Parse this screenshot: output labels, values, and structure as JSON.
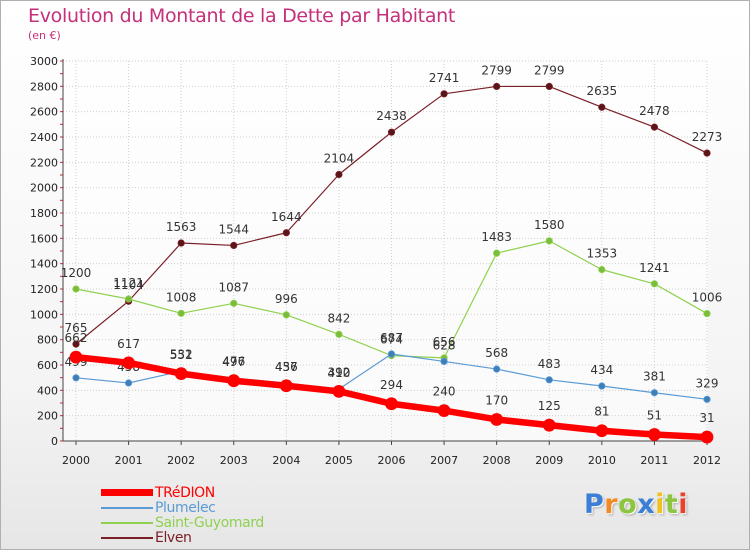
{
  "chart_data": {
    "type": "line",
    "title": "Evolution du Montant de la Dette par Habitant",
    "subtitle": "(en €)",
    "x": [
      "2000",
      "2001",
      "2002",
      "2003",
      "2004",
      "2005",
      "2006",
      "2007",
      "2008",
      "2009",
      "2010",
      "2011",
      "2012"
    ],
    "y_ticks": [
      "0",
      "200",
      "400",
      "600",
      "800",
      "1000",
      "1200",
      "1400",
      "1600",
      "1800",
      "2000",
      "2200",
      "2400",
      "2600",
      "2800",
      "3000"
    ],
    "ylim": [
      0,
      3000
    ],
    "grid": true,
    "legend_position": "bottom-left",
    "series": [
      {
        "name": "Elven",
        "color": "#7a1f27",
        "values": [
          765,
          1104,
          1563,
          1544,
          1644,
          2104,
          2438,
          2741,
          2799,
          2799,
          2635,
          2478,
          2273
        ]
      },
      {
        "name": "Saint-Guyomard",
        "color": "#8fd14f",
        "values": [
          1200,
          1121,
          1008,
          1087,
          996,
          842,
          674,
          656,
          1483,
          1580,
          1353,
          1241,
          1006
        ]
      },
      {
        "name": "Plumelec",
        "color": "#5b9bd5",
        "values": [
          499,
          458,
          551,
          497,
          457,
          410,
          687,
          628,
          568,
          483,
          434,
          381,
          329
        ]
      },
      {
        "name": "TRéDION",
        "color": "#ff0000",
        "values": [
          662,
          617,
          532,
          476,
          436,
          392,
          294,
          240,
          170,
          125,
          81,
          51,
          31
        ]
      }
    ],
    "legend_order": [
      "TRéDION",
      "Plumelec",
      "Saint-Guyomard",
      "Elven"
    ]
  },
  "logo": {
    "letters": [
      "P",
      "r",
      "o",
      "x",
      "i",
      "t",
      "i"
    ],
    "colors": [
      "#3a7fd5",
      "#f08a24",
      "#8cc63f",
      "#3a7fd5",
      "#f0c020",
      "#8cc63f",
      "#e8412c"
    ]
  }
}
